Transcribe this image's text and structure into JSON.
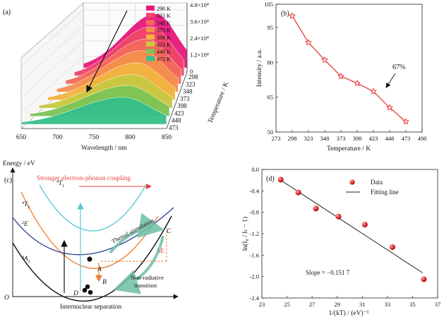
{
  "chart_data": [
    {
      "panel": "(a)",
      "type": "area",
      "xlabel": "Wavelength / nm",
      "ylabel": "Intensity / a.u.",
      "zlabel": "Temperature / K",
      "x_ticks": [
        "650",
        "700",
        "750",
        "800",
        "850"
      ],
      "y_ticks": [
        "0",
        "1.2×10⁴",
        "2.4×10⁴",
        "3.6×10⁴",
        "4.8×10⁴"
      ],
      "z_ticks": [
        "298",
        "323",
        "348",
        "373",
        "398",
        "423",
        "448",
        "473"
      ],
      "peak_wavelength": 790,
      "series": [
        {
          "name": "298 K",
          "peak": 45000,
          "color": "#e8197d"
        },
        {
          "name": "323 K",
          "peak": 41000,
          "color": "#f0466a"
        },
        {
          "name": "348 K",
          "peak": 37500,
          "color": "#f46a5b"
        },
        {
          "name": "373 K",
          "peak": 34500,
          "color": "#f6904d"
        },
        {
          "name": "398 K",
          "peak": 31000,
          "color": "#f2b441"
        },
        {
          "name": "423 K",
          "peak": 28000,
          "color": "#c7c940"
        },
        {
          "name": "448 K",
          "peak": 25500,
          "color": "#7dc455"
        },
        {
          "name": "473 K",
          "peak": 22500,
          "color": "#36bf8b"
        }
      ]
    },
    {
      "panel": "(b)",
      "type": "line",
      "xlabel": "Temperature / K",
      "ylabel": "Intensity / a.u.",
      "xlim": [
        273,
        498
      ],
      "ylim": [
        50,
        105
      ],
      "x_ticks": [
        273,
        298,
        323,
        348,
        373,
        398,
        423,
        448,
        473,
        498
      ],
      "y_ticks": [
        50,
        65,
        80,
        95,
        105
      ],
      "x": [
        298,
        323,
        348,
        373,
        398,
        423,
        448,
        473
      ],
      "y": [
        100,
        88.5,
        81,
        74,
        71,
        67.5,
        60.5,
        54.5
      ],
      "annotation": "67%",
      "color": "#e8413b"
    },
    {
      "panel": "(c)",
      "type": "diagram",
      "ylabel": "Energy / eV",
      "xlabel": "Internuclear separation",
      "top_text": "Stronger electron-phonon coupling",
      "states": [
        {
          "base": "4",
          "sym": "T",
          "sub": "1",
          "color": "#5bc8d4"
        },
        {
          "base": "4",
          "sym": "T",
          "sub": "2",
          "color": "#f07a2c"
        },
        {
          "base": "2",
          "sym": "E",
          "sub": "",
          "color": "#2b3f8f"
        },
        {
          "base": "4",
          "sym": "A",
          "sub": "2",
          "color": "#111111"
        }
      ],
      "points": [
        "A",
        "B",
        "C",
        "D",
        "O"
      ],
      "delta_label": "ΔE",
      "arrow_labels": [
        "Themal stimulation",
        "Non-radiative",
        "transition"
      ]
    },
    {
      "panel": "(d)",
      "type": "scatter",
      "xlabel": "1/(kT) / (eV)⁻¹",
      "ylabel": "ln(I₀ / Iₜ − 1)",
      "xlim": [
        23,
        37
      ],
      "ylim": [
        -2.4,
        0.0
      ],
      "x_ticks": [
        23,
        25,
        27,
        29,
        31,
        33,
        35,
        37
      ],
      "y_ticks": [
        "0.0",
        "-0.4",
        "-0.8",
        "-1.2",
        "-1.6",
        "-2.0",
        "-2.4"
      ],
      "x": [
        24.5,
        25.9,
        27.3,
        29.1,
        31.2,
        33.4,
        35.9
      ],
      "y": [
        -0.19,
        -0.43,
        -0.73,
        -0.88,
        -1.03,
        -1.45,
        -2.05
      ],
      "fit": {
        "x": [
          24.3,
          35.8
        ],
        "y": [
          -0.17,
          -1.93
        ]
      },
      "legend": [
        "Data",
        "Fitting line"
      ],
      "annotation": "Slope = −0.151 7",
      "point_color": "#e52b2b"
    }
  ]
}
